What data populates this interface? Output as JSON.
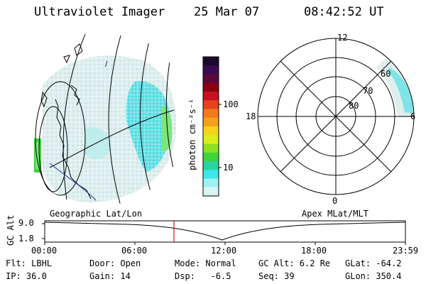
{
  "header": {
    "instrument": "Ultraviolet Imager",
    "date": "25 Mar 07",
    "time": "08:42:52 UT"
  },
  "colorbar": {
    "label": "photon cm⁻²s⁻¹",
    "ticks": [
      "100",
      "10"
    ],
    "scale": "log",
    "colors": [
      "#1a0a2e",
      "#3b0a55",
      "#5a0a3a",
      "#8b0010",
      "#c8101e",
      "#e8401c",
      "#f07a1c",
      "#f5a01a",
      "#f7d21c",
      "#d9ee1c",
      "#8fe022",
      "#3fd43a",
      "#28d4a0",
      "#3ce8e8",
      "#9ff2f2",
      "#d8f4f4"
    ]
  },
  "left_map": {
    "caption": "Geographic Lat/Lon",
    "marker": "/"
  },
  "polar_plot": {
    "caption": "Apex MLat/MLT",
    "mlt_labels": {
      "top": "12",
      "bottom": "0",
      "left": "18",
      "right": "6"
    },
    "lat_labels": [
      "60",
      "70",
      "80"
    ]
  },
  "altitude_strip": {
    "axis_label": "GC Alt",
    "y_ticks": [
      "9.0",
      "1.8"
    ],
    "x_ticks": [
      "00:00",
      "06:00",
      "12:00",
      "18:00",
      "23:59"
    ],
    "current_time_marker": "08:42:52"
  },
  "info": {
    "flt": "Flt: LBHL",
    "ip": "IP: 36.0",
    "door": "Door: Open",
    "gain": "Gain: 14",
    "mode": "Mode: Normal",
    "dsp": "Dsp:   -6.5",
    "gcalt": "GC Alt: 6.2 Re",
    "seq": "Seq: 39",
    "glat": "GLat: -64.2",
    "glon": "GLon: 350.4"
  }
}
